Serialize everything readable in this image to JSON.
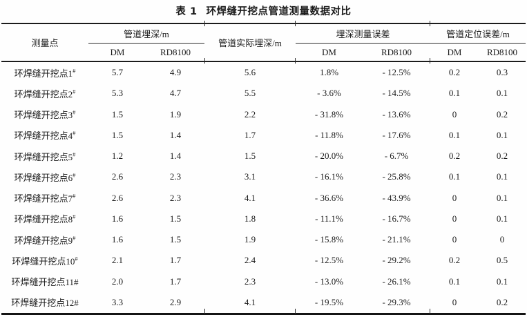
{
  "title": {
    "prefix": "表 1",
    "text": "环焊缝开挖点管道测量数据对比"
  },
  "table": {
    "header": {
      "measure_point": "测量点",
      "groups": [
        {
          "label": "管道埋深/m",
          "sub": [
            "DM",
            "RD8100"
          ]
        },
        {
          "label": "管道实际埋深/m",
          "sub": []
        },
        {
          "label": "埋深测量误差",
          "sub": [
            "DM",
            "RD8100"
          ]
        },
        {
          "label": "管道定位误差/m",
          "sub": [
            "DM",
            "RD8100"
          ]
        }
      ]
    },
    "rows": [
      {
        "point": "环焊缝开挖点1",
        "hash": "#",
        "sup": true,
        "values": [
          "5.7",
          "4.9",
          "5.6",
          "1.8%",
          "- 12.5%",
          "0.2",
          "0.3"
        ]
      },
      {
        "point": "环焊缝开挖点2",
        "hash": "#",
        "sup": true,
        "values": [
          "5.3",
          "4.7",
          "5.5",
          "- 3.6%",
          "- 14.5%",
          "0.1",
          "0.1"
        ]
      },
      {
        "point": "环焊缝开挖点3",
        "hash": "#",
        "sup": true,
        "values": [
          "1.5",
          "1.9",
          "2.2",
          "- 31.8%",
          "- 13.6%",
          "0",
          "0.2"
        ]
      },
      {
        "point": "环焊缝开挖点4",
        "hash": "#",
        "sup": true,
        "values": [
          "1.5",
          "1.4",
          "1.7",
          "- 11.8%",
          "- 17.6%",
          "0.1",
          "0.1"
        ]
      },
      {
        "point": "环焊缝开挖点5",
        "hash": "#",
        "sup": true,
        "values": [
          "1.2",
          "1.4",
          "1.5",
          "- 20.0%",
          "- 6.7%",
          "0.2",
          "0.2"
        ]
      },
      {
        "point": "环焊缝开挖点6",
        "hash": "#",
        "sup": true,
        "values": [
          "2.6",
          "2.3",
          "3.1",
          "- 16.1%",
          "- 25.8%",
          "0.1",
          "0.1"
        ]
      },
      {
        "point": "环焊缝开挖点7",
        "hash": "#",
        "sup": true,
        "values": [
          "2.6",
          "2.3",
          "4.1",
          "- 36.6%",
          "- 43.9%",
          "0",
          "0.1"
        ]
      },
      {
        "point": "环焊缝开挖点8",
        "hash": "#",
        "sup": true,
        "values": [
          "1.6",
          "1.5",
          "1.8",
          "- 11.1%",
          "- 16.7%",
          "0",
          "0.1"
        ]
      },
      {
        "point": "环焊缝开挖点9",
        "hash": "#",
        "sup": true,
        "values": [
          "1.6",
          "1.5",
          "1.9",
          "- 15.8%",
          "- 21.1%",
          "0",
          "0"
        ]
      },
      {
        "point": "环焊缝开挖点10",
        "hash": "#",
        "sup": true,
        "values": [
          "2.1",
          "1.7",
          "2.4",
          "- 12.5%",
          "- 29.2%",
          "0.2",
          "0.5"
        ]
      },
      {
        "point": "环焊缝开挖点11",
        "hash": "#",
        "sup": false,
        "values": [
          "2.0",
          "1.7",
          "2.3",
          "- 13.0%",
          "- 26.1%",
          "0.1",
          "0.1"
        ]
      },
      {
        "point": "环焊缝开挖点12",
        "hash": "#",
        "sup": false,
        "values": [
          "3.3",
          "2.9",
          "4.1",
          "- 19.5%",
          "- 29.3%",
          "0",
          "0.2"
        ]
      }
    ]
  }
}
